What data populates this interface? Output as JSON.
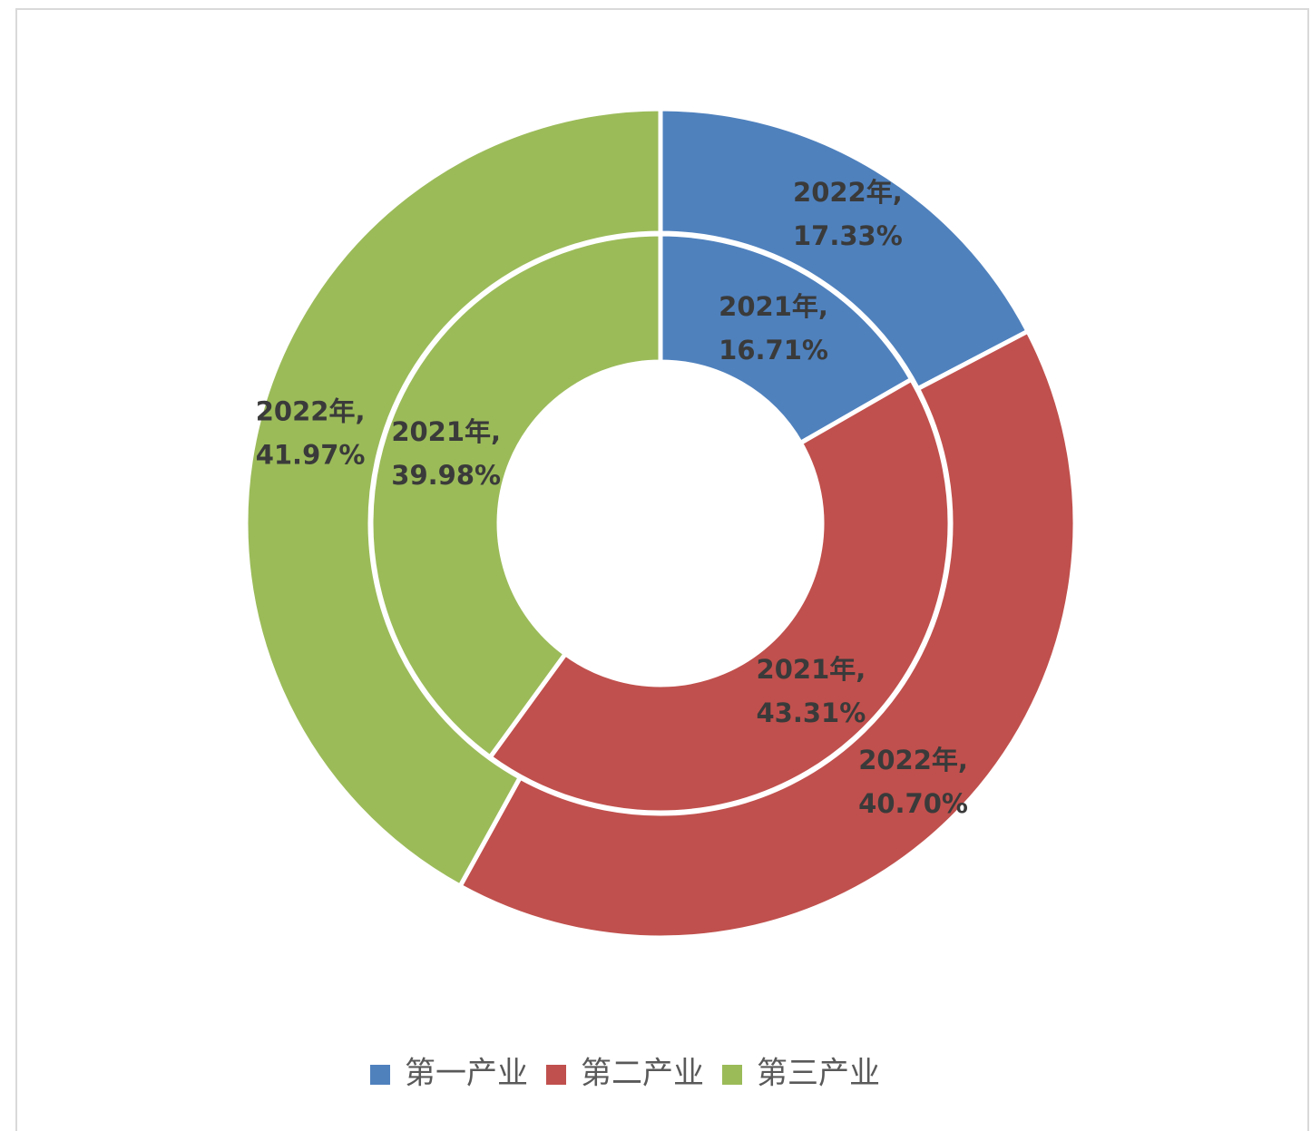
{
  "chart_data": {
    "type": "donut",
    "categories": [
      "第一产业",
      "第二产业",
      "第三产业"
    ],
    "colors": [
      "#4f81bd",
      "#c0504d",
      "#9bbb59"
    ],
    "label_separator": ",",
    "series": [
      {
        "name": "2021年",
        "values": [
          16.71,
          43.31,
          39.98
        ],
        "value_labels": [
          "16.71%",
          "43.31%",
          "39.98%"
        ]
      },
      {
        "name": "2022年",
        "values": [
          17.33,
          40.7,
          41.97
        ],
        "value_labels": [
          "17.33%",
          "40.70%",
          "41.97%"
        ]
      }
    ],
    "legend": "bottom"
  }
}
